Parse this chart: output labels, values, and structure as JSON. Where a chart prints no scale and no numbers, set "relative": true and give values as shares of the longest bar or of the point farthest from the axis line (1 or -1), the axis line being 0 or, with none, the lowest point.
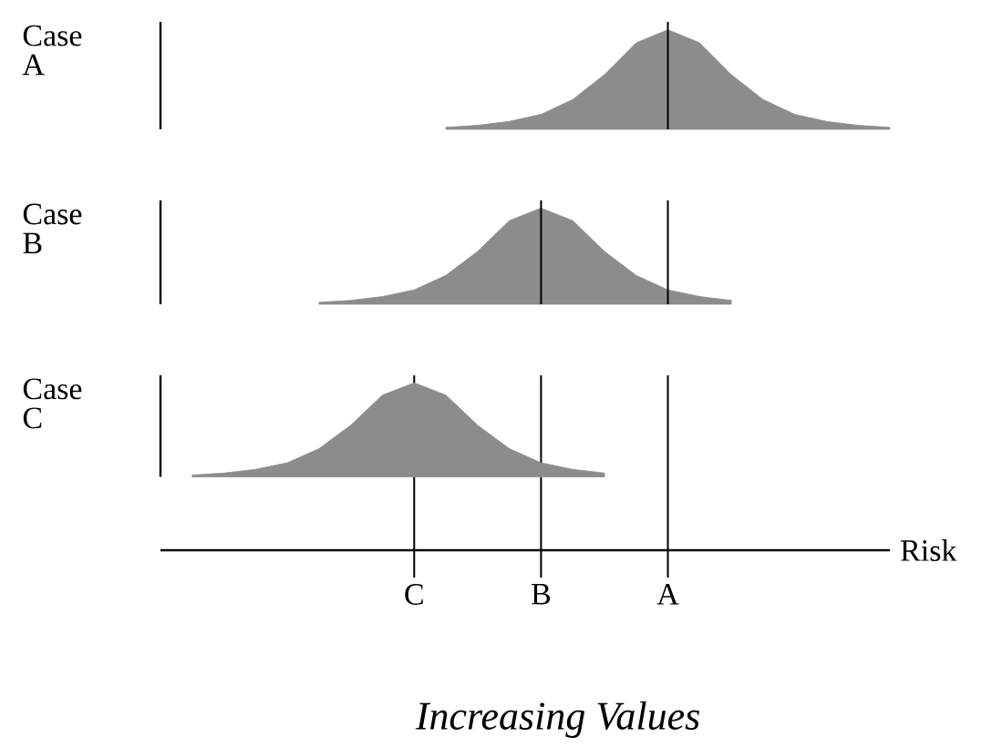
{
  "chart_data": [
    {
      "type": "area",
      "relative": true,
      "tick_labels": false,
      "ylabel": "Case A",
      "categories": [
        null,
        null,
        null,
        null,
        null,
        null,
        null,
        null,
        "C",
        null,
        null,
        null,
        "B",
        null,
        null,
        null,
        "A",
        null,
        null,
        null,
        null,
        null,
        null,
        null
      ],
      "series": [
        {
          "color": "#8c8c8c",
          "values": [
            null,
            null,
            null,
            null,
            null,
            null,
            null,
            null,
            null,
            0.02,
            0.04,
            0.08,
            0.15,
            0.3,
            0.55,
            0.87,
            1,
            0.87,
            0.55,
            0.3,
            0.15,
            0.08,
            0.04,
            0.02
          ]
        }
      ],
      "ref_lines": [
        {
          "axis": "x",
          "value": "A",
          "color": "#000000"
        }
      ]
    },
    {
      "type": "area",
      "relative": true,
      "tick_labels": false,
      "ylabel": "Case B",
      "categories": [
        null,
        null,
        null,
        null,
        null,
        null,
        null,
        null,
        "C",
        null,
        null,
        null,
        "B",
        null,
        null,
        null,
        "A",
        null,
        null,
        null,
        null,
        null,
        null,
        null
      ],
      "series": [
        {
          "color": "#8c8c8c",
          "values": [
            null,
            null,
            null,
            null,
            null,
            0.02,
            0.04,
            0.08,
            0.15,
            0.3,
            0.55,
            0.87,
            1,
            0.87,
            0.55,
            0.3,
            0.15,
            0.08,
            0.04,
            null,
            null,
            null,
            null,
            null
          ]
        }
      ],
      "ref_lines": [
        {
          "axis": "x",
          "value": "B",
          "color": "#000000"
        },
        {
          "axis": "x",
          "value": "A",
          "color": "#000000"
        }
      ]
    },
    {
      "type": "area",
      "relative": true,
      "tick_labels": "x",
      "ylabel": "Case C",
      "xlabel": "Risk",
      "categories": [
        null,
        null,
        null,
        null,
        null,
        null,
        null,
        null,
        "C",
        null,
        null,
        null,
        "B",
        null,
        null,
        null,
        "A",
        null,
        null,
        null,
        null,
        null,
        null,
        null
      ],
      "annotations": [
        "Increasing Values"
      ],
      "grid": "x",
      "series": [
        {
          "color": "#8c8c8c",
          "values": [
            null,
            0.02,
            0.04,
            0.08,
            0.15,
            0.3,
            0.55,
            0.87,
            1,
            0.87,
            0.55,
            0.3,
            0.15,
            0.08,
            0.04,
            null,
            null,
            null,
            null,
            null,
            null,
            null,
            null,
            null
          ]
        }
      ]
    }
  ]
}
